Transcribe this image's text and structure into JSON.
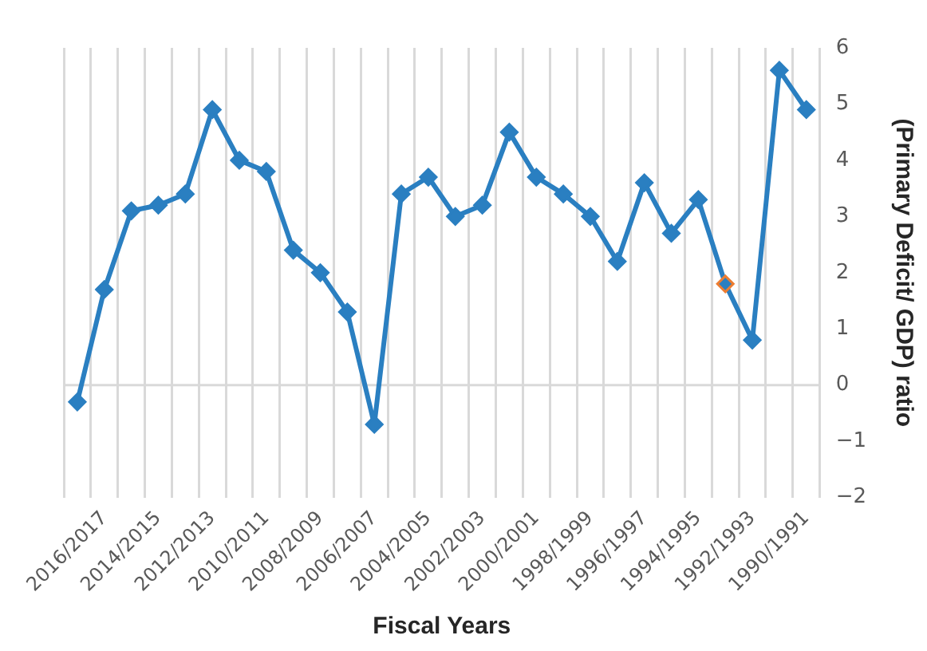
{
  "chart_data": {
    "type": "line",
    "xlabel": "Fiscal Years",
    "ylabel": "(Primary Deficit/ GDP) ratio",
    "categories": [
      null,
      "2016/2017",
      null,
      "2014/2015",
      null,
      "2012/2013",
      null,
      "2010/2011",
      null,
      "2008/2009",
      null,
      "2006/2007",
      null,
      "2004/2005",
      null,
      "2002/2003",
      null,
      "2000/2001",
      null,
      "1998/1999",
      null,
      "1996/1997",
      null,
      "1994/1995",
      null,
      "1992/1993",
      null,
      "1990/1991"
    ],
    "series": [
      {
        "color": "#2a7fc1",
        "values": [
          -0.3,
          1.7,
          3.1,
          3.2,
          3.4,
          4.9,
          4.0,
          3.8,
          2.4,
          2.0,
          1.3,
          -0.7,
          3.4,
          3.7,
          3.0,
          3.2,
          4.5,
          3.7,
          3.4,
          3.0,
          2.2,
          3.6,
          2.7,
          3.3,
          1.8,
          0.8,
          5.6,
          4.9
        ],
        "colors": [
          "#2a7fc1",
          "#2a7fc1",
          "#2a7fc1",
          "#2a7fc1",
          "#2a7fc1",
          "#2a7fc1",
          "#2a7fc1",
          "#2a7fc1",
          "#2a7fc1",
          "#2a7fc1",
          "#2a7fc1",
          "#2a7fc1",
          "#2a7fc1",
          "#2a7fc1",
          "#2a7fc1",
          "#2a7fc1",
          "#2a7fc1",
          "#2a7fc1",
          "#2a7fc1",
          "#2a7fc1",
          "#2a7fc1",
          "#2a7fc1",
          "#2a7fc1",
          "#2a7fc1",
          "#ed7d31",
          "#2a7fc1",
          "#2a7fc1",
          "#2a7fc1"
        ]
      }
    ],
    "ylim": [
      -2,
      6
    ],
    "yticks": [
      -2,
      -1,
      0,
      1,
      2,
      3,
      4,
      5,
      6
    ],
    "grid": "x",
    "ref_lines": [
      {
        "axis": "y",
        "value": 0,
        "color": "#d9d9d9"
      }
    ],
    "legend": false,
    "marker": "diamond",
    "line_style": "solid"
  }
}
